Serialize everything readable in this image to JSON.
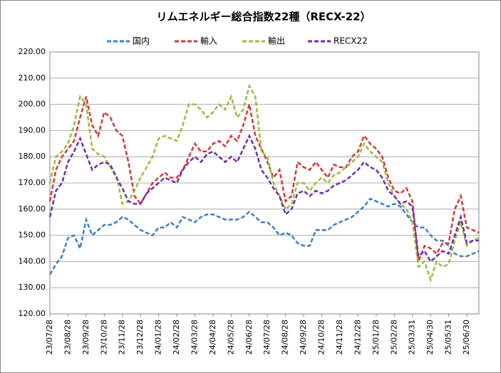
{
  "chart_data": {
    "type": "line",
    "title": "リムエネルギー総合指数22種（RECX-22）",
    "categories": [
      "23/07/28",
      null,
      null,
      "23/08/28",
      null,
      null,
      "23/09/28",
      null,
      null,
      "23/10/28",
      null,
      null,
      "23/11/28",
      null,
      null,
      "23/12/28",
      null,
      null,
      "24/01/28",
      null,
      null,
      "24/02/28",
      null,
      null,
      "24/03/28",
      null,
      null,
      "24/04/28",
      null,
      null,
      "24/05/28",
      null,
      null,
      "24/06/28",
      null,
      null,
      "24/07/28",
      null,
      null,
      "24/08/28",
      null,
      null,
      "24/09/28",
      null,
      null,
      "24/10/28",
      null,
      null,
      "24/11/28",
      null,
      null,
      "24/12/28",
      null,
      null,
      "25/01/28",
      null,
      null,
      "25/02/28",
      null,
      null,
      "25/03/31",
      null,
      null,
      "25/04/30",
      null,
      null,
      "25/05/31",
      null,
      null,
      "25/06/30",
      null,
      null
    ],
    "series": [
      {
        "name": "国内",
        "color": "#3f7fc4",
        "values": [
          135,
          139,
          142,
          149,
          150,
          145,
          156,
          150,
          152,
          154,
          154,
          155,
          157,
          156,
          154,
          152,
          151,
          150,
          153,
          153,
          155,
          153,
          157,
          156,
          155,
          157,
          158,
          158,
          157,
          156,
          156,
          156,
          157,
          159,
          157,
          155,
          155,
          153,
          150,
          151,
          150,
          147,
          146,
          146,
          152,
          152,
          152,
          154,
          155,
          156,
          157,
          159,
          161,
          164,
          163,
          162,
          161,
          162,
          161,
          158,
          155,
          153,
          153,
          150,
          148,
          148,
          146,
          143,
          142,
          142,
          143,
          144
        ]
      },
      {
        "name": "輸入",
        "color": "#d03a3a",
        "values": [
          163,
          175,
          180,
          183,
          186,
          195,
          203,
          192,
          188,
          197,
          195,
          190,
          188,
          178,
          165,
          162,
          166,
          170,
          172,
          174,
          172,
          172,
          175,
          180,
          185,
          182,
          182,
          185,
          186,
          184,
          188,
          186,
          192,
          200,
          188,
          183,
          178,
          172,
          175,
          163,
          165,
          178,
          176,
          175,
          178,
          175,
          172,
          177,
          176,
          176,
          180,
          182,
          188,
          185,
          183,
          180,
          172,
          167,
          166,
          168,
          163,
          140,
          146,
          145,
          143,
          147,
          147,
          160,
          165,
          153,
          152,
          151
        ]
      },
      {
        "name": "輸出",
        "color": "#9bbb44",
        "values": [
          170,
          180,
          182,
          185,
          192,
          203,
          200,
          183,
          181,
          180,
          176,
          173,
          162,
          163,
          167,
          172,
          176,
          180,
          187,
          188,
          187,
          186,
          192,
          200,
          200,
          198,
          195,
          197,
          200,
          198,
          203,
          195,
          198,
          207,
          203,
          182,
          180,
          170,
          165,
          160,
          162,
          170,
          170,
          167,
          170,
          172,
          170,
          173,
          174,
          176,
          178,
          180,
          185,
          182,
          180,
          178,
          170,
          165,
          162,
          160,
          155,
          138,
          140,
          133,
          140,
          138,
          139,
          148,
          155,
          146,
          148,
          149
        ]
      },
      {
        "name": "RECX22",
        "color": "#7030a0",
        "values": [
          157,
          167,
          170,
          178,
          182,
          187,
          181,
          175,
          177,
          178,
          177,
          172,
          168,
          163,
          162,
          162,
          166,
          168,
          170,
          172,
          171,
          170,
          175,
          178,
          180,
          178,
          181,
          182,
          180,
          178,
          180,
          178,
          183,
          188,
          183,
          175,
          172,
          168,
          165,
          158,
          160,
          166,
          167,
          165,
          167,
          166,
          167,
          169,
          170,
          171,
          173,
          175,
          178,
          176,
          175,
          172,
          167,
          165,
          162,
          163,
          161,
          142,
          144,
          140,
          142,
          144,
          143,
          150,
          157,
          147,
          148,
          148
        ]
      }
    ],
    "ylim": [
      120,
      220
    ],
    "yticks": [
      {
        "value": 120,
        "label": "120.00"
      },
      {
        "value": 130,
        "label": "130.00"
      },
      {
        "value": 140,
        "label": "140.00"
      },
      {
        "value": 150,
        "label": "150.00"
      },
      {
        "value": 160,
        "label": "160.00"
      },
      {
        "value": 170,
        "label": "170.00"
      },
      {
        "value": 180,
        "label": "180.00"
      },
      {
        "value": 190,
        "label": "190.00"
      },
      {
        "value": 200,
        "label": "200.00"
      },
      {
        "value": 210,
        "label": "210.00"
      },
      {
        "value": 220,
        "label": "220.00"
      }
    ],
    "grid": true
  }
}
